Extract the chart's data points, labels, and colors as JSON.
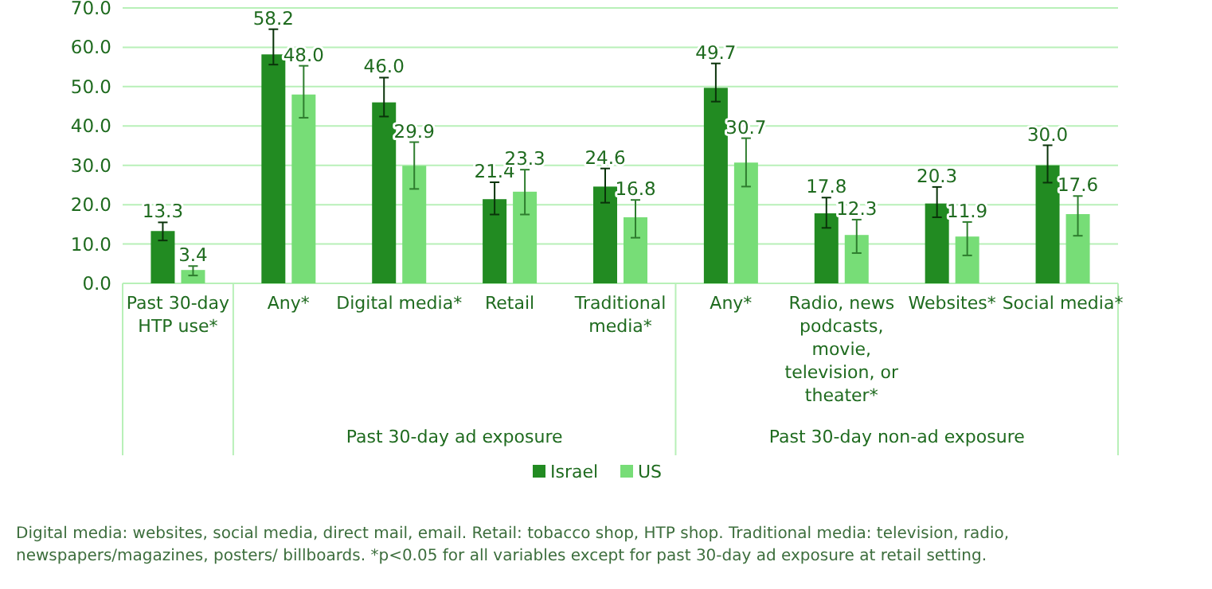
{
  "chart_data": {
    "type": "bar",
    "categories": [
      "Past 30-day HTP use*",
      "Any*",
      "Digital media*",
      "Retail",
      "Traditional media*",
      "Any*",
      "Radio, news podcasts, movie, television, or theater*",
      "Websites*",
      "Social media*"
    ],
    "series": [
      {
        "name": "Israel",
        "color": "#228b22",
        "values": [
          13.3,
          58.2,
          46.0,
          21.4,
          24.6,
          49.7,
          17.8,
          20.3,
          30.0
        ],
        "value_labels": [
          "13.3",
          "58.2",
          "46.0",
          "21.4",
          "24.6",
          "49.7",
          "17.8",
          "20.3",
          "30.0"
        ],
        "errors": [
          [
            10.9,
            15.5
          ],
          [
            55.6,
            64.6
          ],
          [
            42.4,
            52.3
          ],
          [
            17.5,
            25.7
          ],
          [
            20.5,
            29.2
          ],
          [
            46.2,
            55.9
          ],
          [
            14.1,
            21.8
          ],
          [
            16.8,
            24.5
          ],
          [
            25.6,
            35.1
          ]
        ]
      },
      {
        "name": "US",
        "color": "#77dd77",
        "values": [
          3.4,
          48.0,
          29.9,
          23.3,
          16.8,
          30.7,
          12.3,
          11.9,
          17.6
        ],
        "value_labels": [
          "3.4",
          "48.0",
          "29.9",
          "23.3",
          "16.8",
          "30.7",
          "12.3",
          "11.9",
          "17.6"
        ],
        "errors": [
          [
            2.0,
            4.4
          ],
          [
            42.1,
            55.3
          ],
          [
            24.0,
            35.9
          ],
          [
            17.5,
            28.9
          ],
          [
            11.6,
            21.2
          ],
          [
            24.6,
            36.9
          ],
          [
            7.7,
            16.2
          ],
          [
            7.1,
            15.6
          ],
          [
            12.1,
            22.2
          ]
        ]
      }
    ],
    "ylim": [
      0,
      70
    ],
    "yticks": [
      {
        "value": 0,
        "label": "0.0"
      },
      {
        "value": 10,
        "label": "10.0"
      },
      {
        "value": 20,
        "label": "20.0"
      },
      {
        "value": 30,
        "label": "30.0"
      },
      {
        "value": 40,
        "label": "40.0"
      },
      {
        "value": 50,
        "label": "50.0"
      },
      {
        "value": 60,
        "label": "60.0"
      },
      {
        "value": 70,
        "label": "70.0"
      }
    ],
    "grid": "y",
    "legend": "bottom",
    "annotations": [
      "Past 30-day ad exposure",
      "Past 30-day non-ad exposure",
      "Digital media: websites, social media, direct mail, email. Retail: tobacco shop, HTP shop. Traditional media: television, radio, newspapers/magazines, posters/ billboards. *p<0.05 for all variables except for past 30-day ad exposure at retail setting."
    ]
  }
}
